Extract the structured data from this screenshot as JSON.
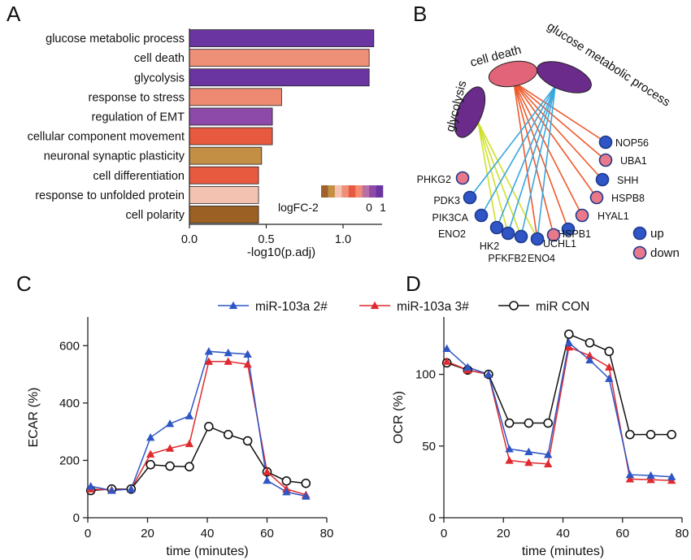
{
  "panels": {
    "A": "A",
    "B": "B",
    "C": "C",
    "D": "D"
  },
  "chart_data": [
    {
      "panel": "A",
      "type": "bar",
      "orientation": "horizontal",
      "categories": [
        "glucose metabolic process",
        "cell death",
        "glycolysis",
        "response to stress",
        "regulation of EMT",
        "cellular component movement",
        "neuronal synaptic plasticity",
        "cell differentiation",
        "response to unfolded protein",
        "cell polarity"
      ],
      "values": [
        1.2,
        1.17,
        1.17,
        0.6,
        0.54,
        0.54,
        0.47,
        0.45,
        0.45,
        0.45
      ],
      "bar_colors": [
        "#6a35a0",
        "#ee8f78",
        "#6a35a0",
        "#ef8a72",
        "#8d4aa8",
        "#e85a3f",
        "#c28f45",
        "#e85a40",
        "#f4c2b0",
        "#9b6024"
      ],
      "xlabel": "-log10(p.adj)",
      "xticks": [
        "0.0",
        "0.5",
        "1.0"
      ],
      "xlim": [
        0,
        1.3
      ],
      "legend": {
        "label": "logFC-2",
        "tick_labels": [
          "0",
          "1"
        ],
        "colors": [
          "#a0622a",
          "#c28f45",
          "#f4c2b0",
          "#ee8f78",
          "#e85a3f",
          "#f28c72",
          "#b86fa6",
          "#8d4aa8",
          "#6a35a0"
        ]
      }
    },
    {
      "panel": "B",
      "type": "network",
      "terms": [
        "glycolysis",
        "cell death",
        "glucose metabolic process"
      ],
      "term_colors": [
        "#6a2b8a",
        "#e26478",
        "#6a2b8a"
      ],
      "genes": [
        {
          "name": "NOP56",
          "status": "up"
        },
        {
          "name": "UBA1",
          "status": "down"
        },
        {
          "name": "SHH",
          "status": "up"
        },
        {
          "name": "HSPB8",
          "status": "down"
        },
        {
          "name": "HYAL1",
          "status": "down"
        },
        {
          "name": "HSPB1",
          "status": "up"
        },
        {
          "name": "UCHL1",
          "status": "down"
        },
        {
          "name": "ENO4",
          "status": "up"
        },
        {
          "name": "PFKFB2",
          "status": "up"
        },
        {
          "name": "HK2",
          "status": "up"
        },
        {
          "name": "ENO2",
          "status": "up"
        },
        {
          "name": "PIK3CA",
          "status": "up"
        },
        {
          "name": "PDK3",
          "status": "up"
        },
        {
          "name": "PHKG2",
          "status": "down"
        }
      ],
      "edges": [
        [
          "glycolysis",
          "ENO4"
        ],
        [
          "glycolysis",
          "PFKFB2"
        ],
        [
          "glycolysis",
          "HK2"
        ],
        [
          "glycolysis",
          "ENO2"
        ],
        [
          "cell death",
          "NOP56"
        ],
        [
          "cell death",
          "UBA1"
        ],
        [
          "cell death",
          "SHH"
        ],
        [
          "cell death",
          "HSPB8"
        ],
        [
          "cell death",
          "HYAL1"
        ],
        [
          "cell death",
          "HSPB1"
        ],
        [
          "cell death",
          "UCHL1"
        ],
        [
          "cell death",
          "ENO4"
        ],
        [
          "glucose metabolic process",
          "PDK3"
        ],
        [
          "glucose metabolic process",
          "PIK3CA"
        ],
        [
          "glucose metabolic process",
          "ENO2"
        ],
        [
          "glucose metabolic process",
          "HK2"
        ],
        [
          "glucose metabolic process",
          "PFKFB2"
        ],
        [
          "glucose metabolic process",
          "ENO4"
        ]
      ],
      "edge_colors": {
        "glycolysis": "#cfe02a",
        "cell death": "#ee5a2c",
        "glucose metabolic process": "#3aa6dc"
      },
      "legend": [
        {
          "label": "up",
          "color": "#2f55c6"
        },
        {
          "label": "down",
          "color": "#e8788a"
        }
      ]
    },
    {
      "panel": "C",
      "type": "line",
      "xlabel": "time (minutes)",
      "ylabel": "ECAR (%)",
      "xlim": [
        0,
        80
      ],
      "ylim": [
        0,
        700
      ],
      "xticks": [
        0,
        20,
        40,
        60,
        80
      ],
      "yticks": [
        0,
        200,
        400,
        600
      ],
      "series": [
        {
          "name": "miR-103a 2#",
          "color": "#2e56c4",
          "marker": "triangle",
          "x": [
            1,
            8,
            14.5,
            21,
            27.5,
            34,
            40.5,
            47,
            53.5,
            60,
            66.5,
            73
          ],
          "y": [
            110,
            95,
            100,
            280,
            328,
            355,
            580,
            575,
            570,
            130,
            90,
            75
          ]
        },
        {
          "name": "miR-103a 3#",
          "color": "#e02a2f",
          "marker": "triangle",
          "x": [
            1,
            8,
            14.5,
            21,
            27.5,
            34,
            40.5,
            47,
            53.5,
            60,
            66.5,
            73
          ],
          "y": [
            100,
            97,
            100,
            222,
            242,
            258,
            545,
            545,
            535,
            160,
            100,
            80
          ]
        },
        {
          "name": "miR CON",
          "color": "#111111",
          "marker": "circle",
          "x": [
            1,
            8,
            14.5,
            21,
            27.5,
            34,
            40.5,
            47,
            53.5,
            60,
            66.5,
            73
          ],
          "y": [
            95,
            100,
            100,
            185,
            180,
            178,
            318,
            290,
            268,
            160,
            128,
            120
          ]
        }
      ]
    },
    {
      "panel": "D",
      "type": "line",
      "xlabel": "time (minutes)",
      "ylabel": "OCR (%)",
      "xlim": [
        0,
        80
      ],
      "ylim": [
        0,
        140
      ],
      "xticks": [
        0,
        20,
        40,
        60,
        80
      ],
      "yticks": [
        0,
        50,
        100
      ],
      "series": [
        {
          "name": "miR-103a 2#",
          "color": "#2e56c4",
          "marker": "triangle",
          "x": [
            1,
            8,
            15,
            22,
            28.5,
            35,
            42,
            49,
            55.5,
            62.5,
            69.5,
            76.5
          ],
          "y": [
            118,
            105,
            100,
            48,
            46,
            44,
            122,
            110,
            97,
            30,
            29.5,
            28.5
          ]
        },
        {
          "name": "miR-103a 3#",
          "color": "#e02a2f",
          "marker": "triangle",
          "x": [
            1,
            8,
            15,
            22,
            28.5,
            35,
            42,
            49,
            55.5,
            62.5,
            69.5,
            76.5
          ],
          "y": [
            109,
            103,
            100,
            40,
            38.5,
            37.5,
            119,
            113,
            105,
            27,
            26.5,
            26
          ]
        },
        {
          "name": "miR CON",
          "color": "#111111",
          "marker": "circle",
          "x": [
            1,
            8,
            15,
            22,
            28.5,
            35,
            42,
            49,
            55.5,
            62.5,
            69.5,
            76.5
          ],
          "y": [
            108,
            103,
            100,
            66,
            66,
            66,
            128,
            122,
            116,
            58,
            58,
            58
          ]
        }
      ]
    }
  ]
}
